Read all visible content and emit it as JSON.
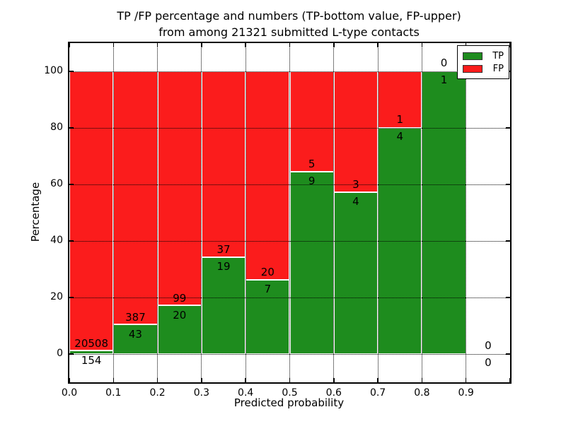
{
  "chart_data": {
    "type": "bar",
    "stacked": true,
    "title": "TP /FP percentage and numbers (TP-bottom value, FP-upper) from among 21321 submitted L-type contacts",
    "title_lines": [
      "TP /FP percentage and numbers (TP-bottom value, FP-upper)",
      "from among 21321 submitted L-type contacts"
    ],
    "total_contacts": 21321,
    "xlabel": "Predicted probability",
    "ylabel": "Percentage",
    "xlim": [
      0.0,
      1.0
    ],
    "ylim": [
      -10,
      110
    ],
    "x_tick_labels": [
      "0.0",
      "0.1",
      "0.2",
      "0.3",
      "0.4",
      "0.5",
      "0.6",
      "0.7",
      "0.8",
      "0.9"
    ],
    "x_tick_values": [
      0.0,
      0.1,
      0.2,
      0.3,
      0.4,
      0.5,
      0.6,
      0.7,
      0.8,
      0.9,
      1.0
    ],
    "y_tick_values": [
      0,
      20,
      40,
      60,
      80,
      100
    ],
    "grid": true,
    "legend": {
      "position": "upper right",
      "entries": [
        {
          "label": "TP",
          "color": "#1e8c1e"
        },
        {
          "label": "FP",
          "color": "#fb1c1c"
        }
      ]
    },
    "bins": [
      {
        "x_start": 0.0,
        "x_end": 0.1,
        "tp": 154,
        "fp": 20508,
        "tp_pct": 0.75
      },
      {
        "x_start": 0.1,
        "x_end": 0.2,
        "tp": 43,
        "fp": 387,
        "tp_pct": 10.0
      },
      {
        "x_start": 0.2,
        "x_end": 0.3,
        "tp": 20,
        "fp": 99,
        "tp_pct": 16.8
      },
      {
        "x_start": 0.3,
        "x_end": 0.4,
        "tp": 19,
        "fp": 37,
        "tp_pct": 33.9
      },
      {
        "x_start": 0.4,
        "x_end": 0.5,
        "tp": 7,
        "fp": 20,
        "tp_pct": 25.9
      },
      {
        "x_start": 0.5,
        "x_end": 0.6,
        "tp": 9,
        "fp": 5,
        "tp_pct": 64.3
      },
      {
        "x_start": 0.6,
        "x_end": 0.7,
        "tp": 4,
        "fp": 3,
        "tp_pct": 57.1
      },
      {
        "x_start": 0.7,
        "x_end": 0.8,
        "tp": 4,
        "fp": 1,
        "tp_pct": 80.0
      },
      {
        "x_start": 0.8,
        "x_end": 0.9,
        "tp": 1,
        "fp": 0,
        "tp_pct": 100.0
      },
      {
        "x_start": 0.9,
        "x_end": 1.0,
        "tp": 0,
        "fp": 0,
        "tp_pct": null
      }
    ]
  },
  "colors": {
    "tp": "#1e8c1e",
    "fp": "#fb1c1c",
    "grid": "#000000",
    "text": "#000000",
    "background": "#ffffff",
    "bar_edge": "#ffffff"
  }
}
